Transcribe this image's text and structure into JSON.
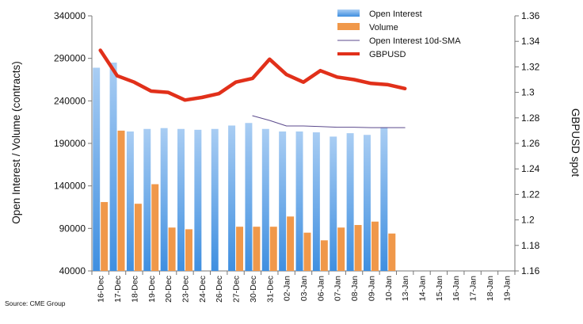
{
  "chart_data": {
    "type": "bar",
    "source": "Source: CME Group",
    "categories": [
      "16-Dec",
      "17-Dec",
      "18-Dec",
      "19-Dec",
      "20-Dec",
      "23-Dec",
      "24-Dec",
      "26-Dec",
      "27-Dec",
      "30-Dec",
      "31-Dec",
      "02-Jan",
      "03-Jan",
      "06-Jan",
      "07-Jan",
      "08-Jan",
      "09-Jan",
      "10-Jan",
      "13-Jan",
      "14-Jan",
      "15-Jan",
      "16-Jan",
      "17-Jan",
      "18-Jan",
      "19-Jan"
    ],
    "ylabel": "Open Interest / Volume (contracts)",
    "y2label": "GBPUSD spot",
    "ylim": [
      40000,
      340000
    ],
    "yticks": [
      "40000",
      "90000",
      "140000",
      "190000",
      "240000",
      "290000",
      "340000"
    ],
    "y2lim": [
      1.16,
      1.36
    ],
    "y2ticks": [
      "1.16",
      "1.18",
      "1.2",
      "1.22",
      "1.24",
      "1.26",
      "1.28",
      "1.3",
      "1.32",
      "1.34",
      "1.36"
    ],
    "legend_position": "top-right",
    "colors": {
      "open_interest_top": "#a9cdf3",
      "open_interest_bottom": "#3f8fe0",
      "volume": "#f0984a",
      "sma": "#5b4a8c",
      "gbpusd": "#e1301a",
      "axis": "#777777"
    },
    "series": [
      {
        "name": "Open Interest",
        "kind": "bar",
        "values": [
          279000,
          285000,
          204000,
          207000,
          208000,
          207000,
          206000,
          207000,
          211000,
          214000,
          207000,
          204000,
          204000,
          203000,
          198000,
          202000,
          200000,
          209000,
          null,
          null,
          null,
          null,
          null,
          null,
          null
        ]
      },
      {
        "name": "Volume",
        "kind": "bar",
        "values": [
          121000,
          205000,
          119000,
          142000,
          91000,
          89000,
          null,
          null,
          92000,
          92000,
          92000,
          104000,
          85000,
          76000,
          91000,
          94000,
          98000,
          84000,
          null,
          null,
          null,
          null,
          null,
          null,
          null
        ]
      },
      {
        "name": "Open Interest 10d-SMA",
        "kind": "line",
        "axis": "left",
        "values": [
          null,
          null,
          null,
          null,
          null,
          null,
          null,
          null,
          null,
          222500,
          217000,
          210500,
          210500,
          209800,
          209000,
          209000,
          208500,
          208500,
          208500,
          null,
          null,
          null,
          null,
          null,
          null
        ]
      },
      {
        "name": "GBPUSD",
        "kind": "line",
        "axis": "right",
        "values": [
          1.333,
          1.313,
          1.308,
          1.301,
          1.3,
          1.294,
          1.296,
          1.299,
          1.308,
          1.311,
          1.326,
          1.314,
          1.308,
          1.317,
          1.312,
          1.31,
          1.307,
          1.306,
          1.303,
          null,
          null,
          null,
          null,
          null,
          null
        ]
      }
    ]
  }
}
